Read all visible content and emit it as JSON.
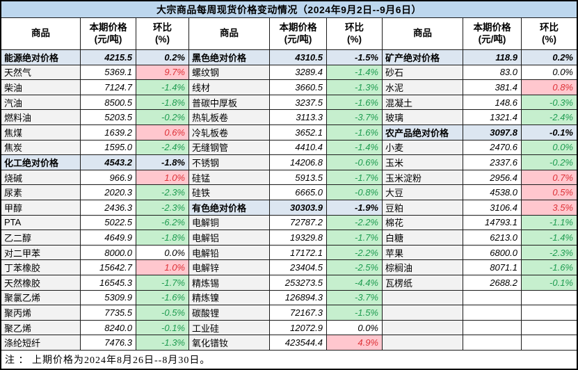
{
  "title": "大宗商品每周现货价格变动情况（2024年9月2日--9月6日）",
  "footnote": "注 ： 上期价格为2024年8月26日--8月30日。",
  "columns": {
    "product": "商品",
    "price_line1": "本期价格",
    "price_line2": "(元/吨)",
    "change_line1": "环比",
    "change_line2": "(%)"
  },
  "colors": {
    "title_bg": "#BDD7EE",
    "section_row_bg": "#DCE6F1",
    "product_col_bg": "#F2F2F2",
    "increase_bg": "#FFC7CE",
    "increase_text": "#DE3238",
    "decrease_bg": "#C6EFCE",
    "decrease_text": "#1E9C50",
    "border": "#1A1A1A"
  },
  "groups": [
    {
      "rows": [
        {
          "name": "能源绝对价格",
          "price": "4215.5",
          "change": "0.2%",
          "style": "section"
        },
        {
          "name": "天然气",
          "price": "5369.1",
          "change": "9.7%",
          "style": "up"
        },
        {
          "name": "柴油",
          "price": "7124.7",
          "change": "-1.4%",
          "style": "down"
        },
        {
          "name": "汽油",
          "price": "8500.5",
          "change": "-1.8%",
          "style": "down"
        },
        {
          "name": "燃料油",
          "price": "5203.5",
          "change": "-0.2%",
          "style": "down"
        },
        {
          "name": "焦煤",
          "price": "1639.2",
          "change": "0.6%",
          "style": "up"
        },
        {
          "name": "焦炭",
          "price": "1595.0",
          "change": "-2.4%",
          "style": "down"
        },
        {
          "name": "化工绝对价格",
          "price": "4543.2",
          "change": "-1.8%",
          "style": "section"
        },
        {
          "name": "烧碱",
          "price": "966.9",
          "change": "1.0%",
          "style": "up"
        },
        {
          "name": "尿素",
          "price": "2020.3",
          "change": "-2.3%",
          "style": "down"
        },
        {
          "name": "甲醇",
          "price": "2436.3",
          "change": "-2.3%",
          "style": "down"
        },
        {
          "name": "PTA",
          "price": "5022.5",
          "change": "-6.2%",
          "style": "down"
        },
        {
          "name": "乙二醇",
          "price": "4649.9",
          "change": "-1.8%",
          "style": "down"
        },
        {
          "name": "对二甲苯",
          "price": "8000.0",
          "change": "0.0%",
          "style": "flat"
        },
        {
          "name": "丁苯橡胶",
          "price": "15642.7",
          "change": "1.0%",
          "style": "up"
        },
        {
          "name": "天然橡胶",
          "price": "16545.3",
          "change": "-1.7%",
          "style": "down"
        },
        {
          "name": "聚氯乙烯",
          "price": "5309.9",
          "change": "-1.6%",
          "style": "down"
        },
        {
          "name": "聚丙烯",
          "price": "7735.5",
          "change": "-0.5%",
          "style": "down"
        },
        {
          "name": "聚乙烯",
          "price": "8240.0",
          "change": "-0.1%",
          "style": "down"
        },
        {
          "name": "涤纶短纤",
          "price": "7476.3",
          "change": "-1.3%",
          "style": "down"
        }
      ]
    },
    {
      "rows": [
        {
          "name": "黑色绝对价格",
          "price": "4310.5",
          "change": "-1.5%",
          "style": "section"
        },
        {
          "name": "螺纹钢",
          "price": "3289.4",
          "change": "-1.4%",
          "style": "down"
        },
        {
          "name": "线材",
          "price": "3660.5",
          "change": "-1.3%",
          "style": "down"
        },
        {
          "name": "普碳中厚板",
          "price": "3237.5",
          "change": "-1.6%",
          "style": "down"
        },
        {
          "name": "热轧板卷",
          "price": "3113.3",
          "change": "-3.7%",
          "style": "down"
        },
        {
          "name": "冷轧板卷",
          "price": "3652.1",
          "change": "-1.6%",
          "style": "down"
        },
        {
          "name": "无缝钢管",
          "price": "4410.4",
          "change": "-1.4%",
          "style": "down"
        },
        {
          "name": "不锈钢",
          "price": "14206.8",
          "change": "-0.6%",
          "style": "down"
        },
        {
          "name": "硅锰",
          "price": "5913.5",
          "change": "-1.7%",
          "style": "down"
        },
        {
          "name": "硅铁",
          "price": "6665.0",
          "change": "-0.8%",
          "style": "down"
        },
        {
          "name": "有色绝对价格",
          "price": "30303.9",
          "change": "-1.9%",
          "style": "section"
        },
        {
          "name": "电解铜",
          "price": "72787.2",
          "change": "-2.2%",
          "style": "down"
        },
        {
          "name": "电解铝",
          "price": "19329.8",
          "change": "-1.7%",
          "style": "down"
        },
        {
          "name": "电解铅",
          "price": "17172.1",
          "change": "-2.2%",
          "style": "down"
        },
        {
          "name": "电解锌",
          "price": "23404.5",
          "change": "-2.5%",
          "style": "down"
        },
        {
          "name": "精炼锡",
          "price": "253273.5",
          "change": "-4.4%",
          "style": "down"
        },
        {
          "name": "精炼镍",
          "price": "126894.3",
          "change": "-3.7%",
          "style": "down"
        },
        {
          "name": "碳酸锂",
          "price": "72167.3",
          "change": "-1.5%",
          "style": "down"
        },
        {
          "name": "工业硅",
          "price": "12072.9",
          "change": "0.0%",
          "style": "flat"
        },
        {
          "name": "氧化镨钕",
          "price": "423544.4",
          "change": "4.9%",
          "style": "up"
        }
      ]
    },
    {
      "rows": [
        {
          "name": "矿产绝对价格",
          "price": "118.9",
          "change": "0.2%",
          "style": "section"
        },
        {
          "name": "砂石",
          "price": "83.0",
          "change": "0.0%",
          "style": "flat"
        },
        {
          "name": "水泥",
          "price": "381.4",
          "change": "0.8%",
          "style": "up"
        },
        {
          "name": "混凝土",
          "price": "148.6",
          "change": "-0.3%",
          "style": "down"
        },
        {
          "name": "玻璃",
          "price": "1321.4",
          "change": "-2.4%",
          "style": "down"
        },
        {
          "name": "农产品绝对价格",
          "price": "3097.8",
          "change": "-0.1%",
          "style": "section"
        },
        {
          "name": "小麦",
          "price": "2470.6",
          "change": "0.0%",
          "style": "down"
        },
        {
          "name": "玉米",
          "price": "2337.6",
          "change": "-0.2%",
          "style": "down"
        },
        {
          "name": "玉米淀粉",
          "price": "2956.4",
          "change": "0.7%",
          "style": "up"
        },
        {
          "name": "大豆",
          "price": "4538.0",
          "change": "0.5%",
          "style": "up"
        },
        {
          "name": "豆粕",
          "price": "3106.4",
          "change": "3.5%",
          "style": "up"
        },
        {
          "name": "棉花",
          "price": "14793.1",
          "change": "-1.1%",
          "style": "down"
        },
        {
          "name": "白糖",
          "price": "6213.0",
          "change": "-1.4%",
          "style": "down"
        },
        {
          "name": "苹果",
          "price": "6800.0",
          "change": "-2.3%",
          "style": "down"
        },
        {
          "name": "棕榈油",
          "price": "8071.1",
          "change": "-1.6%",
          "style": "down"
        },
        {
          "name": "瓦楞纸",
          "price": "2688.2",
          "change": "-0.1%",
          "style": "down"
        },
        {
          "name": "",
          "price": "",
          "change": "",
          "style": "empty"
        },
        {
          "name": "",
          "price": "",
          "change": "",
          "style": "empty"
        },
        {
          "name": "",
          "price": "",
          "change": "",
          "style": "empty"
        },
        {
          "name": "",
          "price": "",
          "change": "",
          "style": "empty"
        }
      ]
    }
  ]
}
